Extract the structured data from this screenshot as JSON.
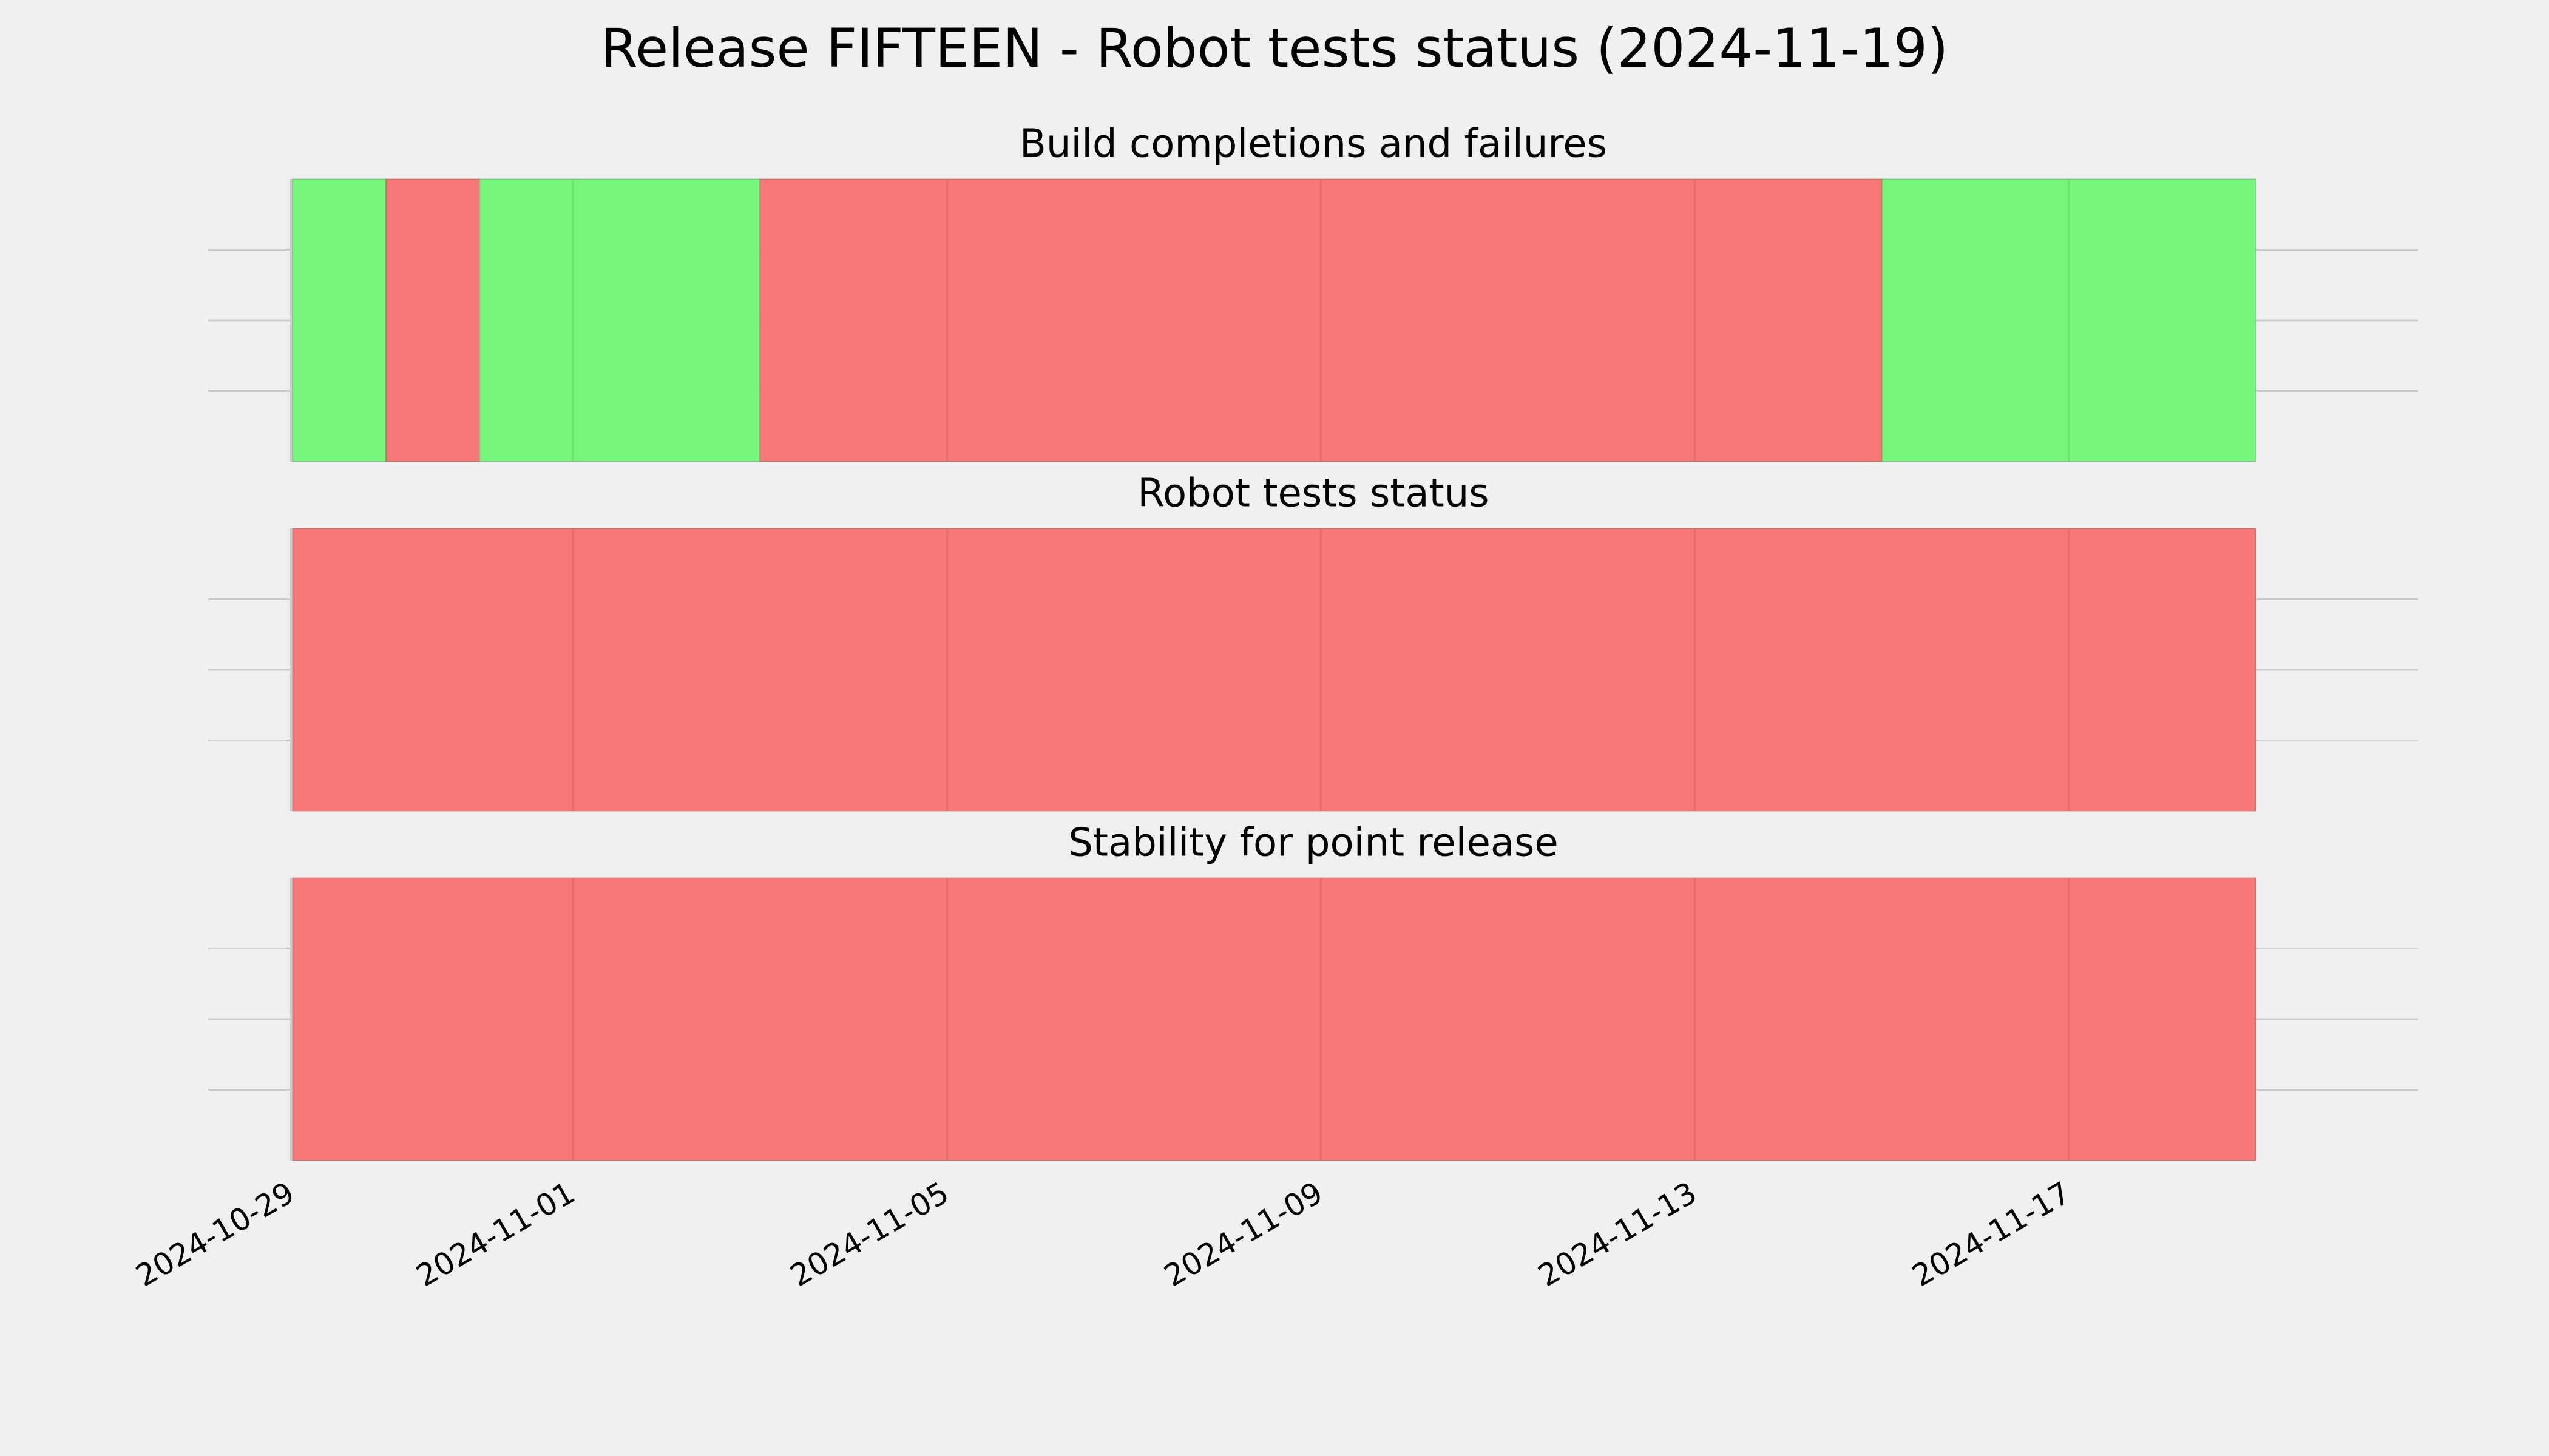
{
  "chart_data": {
    "type": "timeline",
    "title": "Release FIFTEEN - Robot tests status (2024-11-19)",
    "xlim": [
      "2024-10-29",
      "2024-11-20"
    ],
    "xticks": [
      "2024-10-29",
      "2024-11-01",
      "2024-11-05",
      "2024-11-09",
      "2024-11-13",
      "2024-11-17"
    ],
    "grid": true,
    "panels": [
      {
        "title": "Build completions and failures",
        "segments": [
          {
            "start": "2024-10-29",
            "end": "2024-10-30",
            "color": "#76f77b"
          },
          {
            "start": "2024-10-30",
            "end": "2024-10-31",
            "color": "#f77777"
          },
          {
            "start": "2024-10-31",
            "end": "2024-11-03",
            "color": "#76f77b"
          },
          {
            "start": "2024-11-03",
            "end": "2024-11-15",
            "color": "#f77777"
          },
          {
            "start": "2024-11-15",
            "end": "2024-11-19",
            "color": "#76f77b"
          }
        ]
      },
      {
        "title": "Robot tests status",
        "segments": [
          {
            "start": "2024-10-29",
            "end": "2024-11-19",
            "color": "#f77777"
          }
        ]
      },
      {
        "title": "Stability for point release",
        "segments": [
          {
            "start": "2024-10-29",
            "end": "2024-11-19",
            "color": "#f77777"
          }
        ]
      }
    ]
  }
}
